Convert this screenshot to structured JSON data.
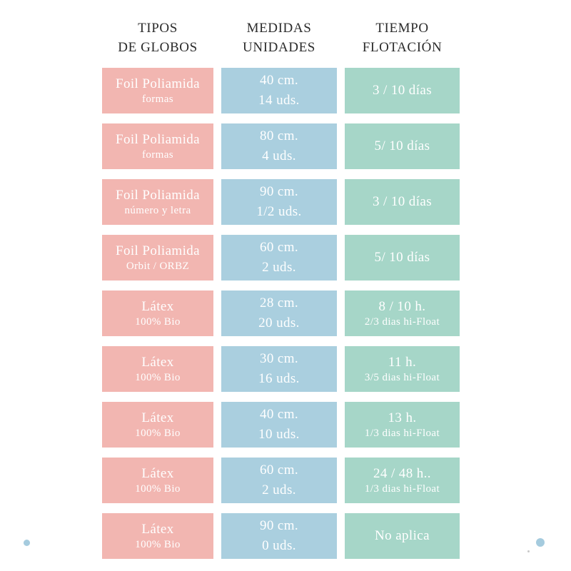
{
  "colors": {
    "background": "#ffffff",
    "header_text": "#2b2b2b",
    "box_text": "#ffffff",
    "type_box": "#f2b6b1",
    "size_box": "#aacfdf",
    "float_box": "#a6d6c8",
    "dot": "#a5cbde",
    "speck": "#c9c9c9"
  },
  "headers": {
    "types": {
      "line1": "TIPOS",
      "line2": "DE GLOBOS"
    },
    "sizes": {
      "line1": "MEDIDAS",
      "line2": "UNIDADES"
    },
    "float": {
      "line1": "TIEMPO",
      "line2": "FLOTACIÓN"
    }
  },
  "rows": [
    {
      "type_line1": "Foil Poliamida",
      "type_line2": "formas",
      "size_line1": "40 cm.",
      "size_line2": "14 uds.",
      "float_line1": "3 / 10 días",
      "float_line2": ""
    },
    {
      "type_line1": "Foil Poliamida",
      "type_line2": "formas",
      "size_line1": "80 cm.",
      "size_line2": "4 uds.",
      "float_line1": "5/ 10 días",
      "float_line2": ""
    },
    {
      "type_line1": "Foil Poliamida",
      "type_line2": "número y letra",
      "size_line1": "90 cm.",
      "size_line2": "1/2 uds.",
      "float_line1": "3 / 10 días",
      "float_line2": ""
    },
    {
      "type_line1": "Foil Poliamida",
      "type_line2": "Orbit / ORBZ",
      "size_line1": "60 cm.",
      "size_line2": "2 uds.",
      "float_line1": "5/ 10 días",
      "float_line2": ""
    },
    {
      "type_line1": "Látex",
      "type_line2": "100% Bio",
      "size_line1": "28 cm.",
      "size_line2": "20 uds.",
      "float_line1": "8 / 10 h.",
      "float_line2": "2/3 dias hi-Float"
    },
    {
      "type_line1": "Látex",
      "type_line2": "100% Bio",
      "size_line1": "30 cm.",
      "size_line2": "16 uds.",
      "float_line1": "11 h.",
      "float_line2": "3/5 dias hi-Float"
    },
    {
      "type_line1": "Látex",
      "type_line2": "100% Bio",
      "size_line1": "40 cm.",
      "size_line2": "10 uds.",
      "float_line1": "13 h.",
      "float_line2": "1/3 dias hi-Float"
    },
    {
      "type_line1": "Látex",
      "type_line2": "100% Bio",
      "size_line1": "60 cm.",
      "size_line2": "2 uds.",
      "float_line1": "24 / 48 h..",
      "float_line2": "1/3 dias hi-Float"
    },
    {
      "type_line1": "Látex",
      "type_line2": "100% Bio",
      "size_line1": "90 cm.",
      "size_line2": "0 uds.",
      "float_line1": "No aplica",
      "float_line2": ""
    }
  ],
  "chart_data": {
    "type": "table",
    "title": "",
    "columns": [
      "TIPOS DE GLOBOS",
      "MEDIDAS UNIDADES",
      "TIEMPO FLOTACIÓN"
    ],
    "rows": [
      [
        "Foil Poliamida formas",
        "40 cm. 14 uds.",
        "3 / 10 días"
      ],
      [
        "Foil Poliamida formas",
        "80 cm. 4 uds.",
        "5/ 10 días"
      ],
      [
        "Foil Poliamida número y letra",
        "90 cm. 1/2 uds.",
        "3 / 10 días"
      ],
      [
        "Foil Poliamida Orbit / ORBZ",
        "60 cm. 2 uds.",
        "5/ 10 días"
      ],
      [
        "Látex 100% Bio",
        "28 cm. 20 uds.",
        "8 / 10 h. 2/3 dias hi-Float"
      ],
      [
        "Látex 100% Bio",
        "30 cm. 16 uds.",
        "11 h. 3/5 dias hi-Float"
      ],
      [
        "Látex 100% Bio",
        "40 cm. 10 uds.",
        "13 h. 1/3 dias hi-Float"
      ],
      [
        "Látex 100% Bio",
        "60 cm. 2 uds.",
        "24 / 48 h.. 1/3 dias hi-Float"
      ],
      [
        "Látex 100% Bio",
        "90 cm. 0 uds.",
        "No aplica"
      ]
    ]
  }
}
